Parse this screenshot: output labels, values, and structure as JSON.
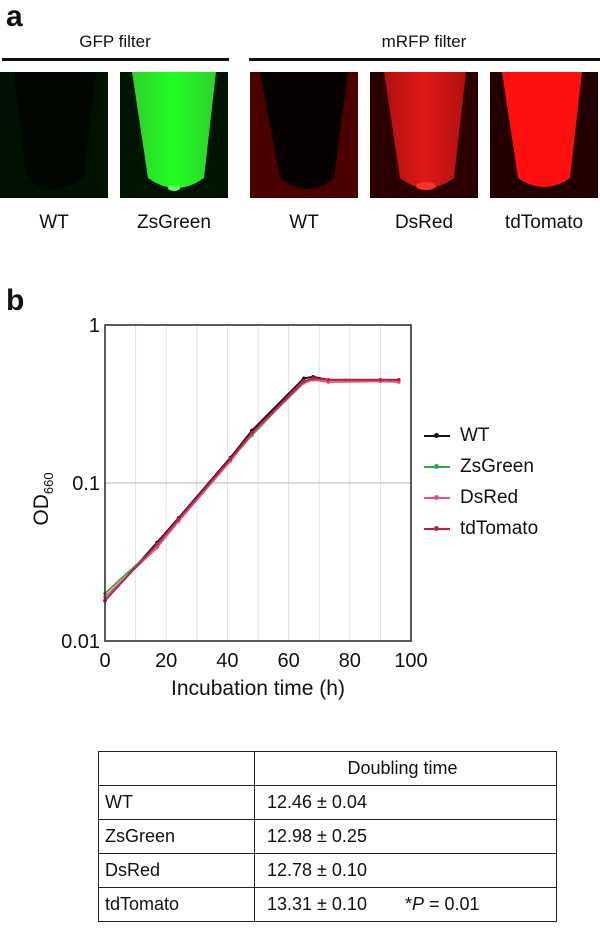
{
  "panel_a": {
    "label": "a",
    "filters": [
      {
        "title": "GFP filter",
        "samples": [
          {
            "name": "WT",
            "signal": "none",
            "color": "#00ff00"
          },
          {
            "name": "ZsGreen",
            "signal": "strong",
            "color": "#00ff00"
          }
        ]
      },
      {
        "title": "mRFP filter",
        "samples": [
          {
            "name": "WT",
            "signal": "none",
            "color": "#ff0000"
          },
          {
            "name": "DsRed",
            "signal": "medium",
            "color": "#ff0000"
          },
          {
            "name": "tdTomato",
            "signal": "strong",
            "color": "#ff0000"
          }
        ]
      }
    ]
  },
  "panel_b": {
    "label": "b"
  },
  "chart_data": {
    "type": "line",
    "title": "",
    "xlabel": "Incubation time (h)",
    "ylabel": "OD",
    "ylabel_subscript": "660",
    "xlim": [
      0,
      100
    ],
    "ylim": [
      0.01,
      1
    ],
    "yscale": "log",
    "xticks": [
      "0",
      "20",
      "40",
      "60",
      "80",
      "100"
    ],
    "yticks": [
      "0.01",
      "0.1",
      "1"
    ],
    "grid": true,
    "legend_position": "right",
    "x": [
      0,
      17,
      24,
      41,
      48,
      65,
      68,
      73,
      90,
      96
    ],
    "series": [
      {
        "name": "WT",
        "color": "#111111",
        "values": [
          0.018,
          0.042,
          0.06,
          0.145,
          0.215,
          0.46,
          0.47,
          0.45,
          0.45,
          0.45
        ]
      },
      {
        "name": "ZsGreen",
        "color": "#2ea84a",
        "values": [
          0.02,
          0.04,
          0.058,
          0.14,
          0.2,
          0.44,
          0.46,
          0.45,
          0.45,
          0.445
        ]
      },
      {
        "name": "DsRed",
        "color": "#e8508a",
        "values": [
          0.019,
          0.039,
          0.057,
          0.138,
          0.205,
          0.43,
          0.45,
          0.435,
          0.44,
          0.435
        ]
      },
      {
        "name": "tdTomato",
        "color": "#c0203c",
        "values": [
          0.018,
          0.041,
          0.059,
          0.142,
          0.208,
          0.44,
          0.46,
          0.45,
          0.45,
          0.45
        ]
      }
    ]
  },
  "table": {
    "header": [
      "",
      "Doubling time"
    ],
    "rows": [
      {
        "strain": "WT",
        "doubling_time": "12.46 ± 0.04",
        "note": ""
      },
      {
        "strain": "ZsGreen",
        "doubling_time": "12.98 ± 0.25",
        "note": ""
      },
      {
        "strain": "DsRed",
        "doubling_time": "12.78 ± 0.10",
        "note": ""
      },
      {
        "strain": "tdTomato",
        "doubling_time": "13.31 ± 0.10",
        "note_star": "*",
        "note_p": "P",
        "note_rest": " = 0.01"
      }
    ]
  }
}
